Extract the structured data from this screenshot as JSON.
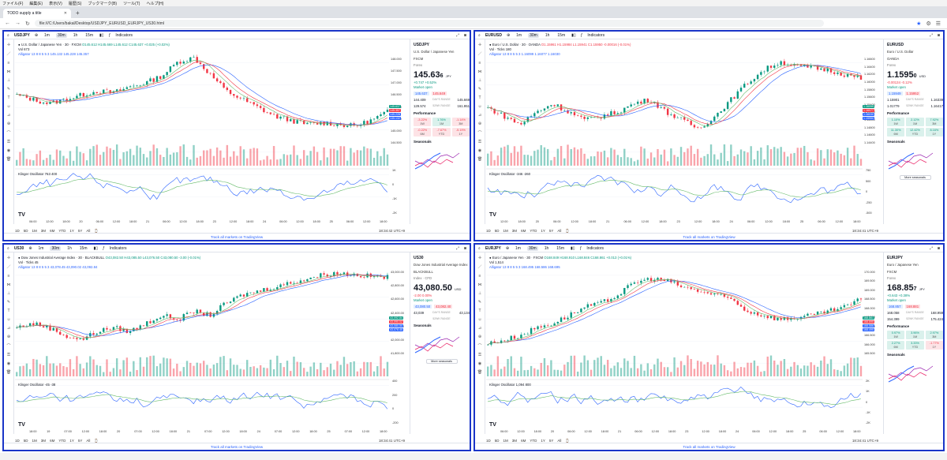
{
  "menu": [
    "ファイル(F)",
    "編集(E)",
    "表示(V)",
    "履歴(S)",
    "ブックマーク(B)",
    "ツール(T)",
    "ヘルプ(H)"
  ],
  "browser": {
    "tab_title": "TODO supply a title",
    "url": "file:///C:/Users/bakal/Desktop/USDJPY_EURUSD_EURJPY_US30.html"
  },
  "timeframes": [
    "1m",
    "30m",
    "1h",
    "15m"
  ],
  "indicators_label": "Indicators",
  "ranges": [
    "1D",
    "5D",
    "1M",
    "3M",
    "6M",
    "YTD",
    "1Y",
    "5Y",
    "All"
  ],
  "tv_link": "Track all markets on TradingView",
  "colors": {
    "up": "#089981",
    "down": "#f23645",
    "blue": "#2962ff",
    "panel_border": "#1a35c8"
  },
  "panels": [
    {
      "symbol": "USDJPY",
      "title": "U.S. Dollar / Japanese Yen · 30 · FXCM",
      "ohlc": "O145.612 H145.669 L145.612 C145.637 +0.025 (+0.02%)",
      "vol": "Vol 673",
      "alligator": "Alligator 13 8 8 5 5 3  145.132  145.228  145.357",
      "osc": "Klinger Oscillator  763  400",
      "rp_desc": "U.S. Dollar / Japanese Yen",
      "rp_src": "FXCM",
      "rp_cat": "Forex",
      "price": "145.63",
      "price_small": "6",
      "cur": "JPY",
      "change": "+0.747  +0.52%",
      "market": "Market open",
      "bid": "145.637",
      "ask": "145.649",
      "day_low": "144.409",
      "day_high": "145.669",
      "wk_low": "129.574",
      "wk_high": "161.951",
      "perf": [
        [
          "-3.22%",
          "1W",
          "neg"
        ],
        [
          "1.76%",
          "1M",
          "pos"
        ],
        [
          "-1.14%",
          "3M",
          "neg"
        ],
        [
          "-0.22%",
          "6M",
          "neg"
        ],
        [
          "-7.67%",
          "YTD",
          "neg"
        ],
        [
          "-5.19%",
          "1Y",
          "neg"
        ]
      ],
      "season_btn": "",
      "clock": "18:34:42 UTC+9",
      "xticks": [
        "06:00",
        "12:00",
        "18:00",
        "20",
        "06:00",
        "12:00",
        "18:00",
        "21",
        "06:00",
        "12:00",
        "18:00",
        "23",
        "12:00",
        "18:00",
        "24",
        "06:00",
        "12:00",
        "18:00",
        "25",
        "06:00",
        "12:00",
        "18:00"
      ],
      "yticks": [
        "148.000",
        "147.500",
        "147.000",
        "146.500",
        "146.000",
        "145.500",
        "145.000",
        "144.500"
      ],
      "oscticks": [
        "1K",
        "0",
        "-1K",
        "-2K"
      ],
      "tags": [
        "145.637",
        "145.357",
        "145.228",
        "145.132"
      ]
    },
    {
      "symbol": "EURUSD",
      "title": "Euro / U.S. Dollar · 30 · OANDA",
      "ohlc": "O1.15961 H1.15984 L1.15941 C1.15950 -0.00016 (-0.01%)",
      "vol": "Vol · Ticks 180",
      "alligator": "Alligator 13 8 8 5 5 3  1.16099  1.16077  1.16030",
      "osc": "Klinger Oscillator  -346  -260",
      "rp_desc": "Euro / U.S. Dollar",
      "rp_src": "OANDA",
      "rp_cat": "Forex",
      "price": "1.1595",
      "price_small": "0",
      "cur": "USD",
      "change": "-0.00134  -0.12%",
      "market": "Market open",
      "bid": "1.15949",
      "ask": "1.15952",
      "day_low": "1.15901",
      "day_high": "1.16339",
      "wk_low": "1.01779",
      "wk_high": "1.16417",
      "perf": [
        [
          "1.10%",
          "1W",
          "pos"
        ],
        [
          "2.12%",
          "1M",
          "pos"
        ],
        [
          "7.92%",
          "3M",
          "pos"
        ],
        [
          "11.30%",
          "6M",
          "pos"
        ],
        [
          "12.42%",
          "YTD",
          "pos"
        ],
        [
          "8.16%",
          "1Y",
          "pos"
        ]
      ],
      "season_btn": "More seasonals",
      "clock": "18:34:41 UTC+9",
      "xticks": [
        "12:00",
        "18:00",
        "20",
        "06:00",
        "12:00",
        "18:00",
        "21",
        "06:00",
        "12:00",
        "18:00",
        "23",
        "12:00",
        "18:00",
        "24",
        "06:00",
        "12:00",
        "18:00",
        "25",
        "06:00",
        "12:00",
        "18:00"
      ],
      "yticks": [
        "1.16600",
        "1.16400",
        "1.16200",
        "1.16000",
        "1.15800",
        "1.15600",
        "1.15400",
        "1.15200",
        "1.15000",
        "1.14800",
        "1.14600",
        "1.14400"
      ],
      "oscticks": [
        "750",
        "500",
        "0",
        "-250",
        "-500"
      ],
      "tags": [
        "1.16099",
        "1.16077",
        "1.16030",
        "1.15950"
      ]
    },
    {
      "symbol": "US30",
      "title": "Dow Jones Industrial Average Index · 30 · BLACKBULL",
      "ohlc": "O43,082.50 H43,085.50 L43,076.50 C43,080.50 -3.00 (-0.01%)",
      "vol": "Vol · Ticks 45",
      "alligator": "Alligator 13 8 8 5 5 3  43,078.45  43,090.02  43,092.84",
      "osc": "Klinger Oscillator  -45  -38",
      "rp_desc": "Dow Jones Industrial Average Index",
      "rp_src": "BLACKBULL",
      "rp_cat": "Index · CFD",
      "price": "43,080.50",
      "price_small": "",
      "cur": "USD",
      "change": "-2.00  0.00%",
      "market": "Market open",
      "bid": "43,080.50",
      "ask": "43,082.40",
      "day_low": "43,039",
      "day_high": "43,134",
      "wk_low": "",
      "wk_high": "",
      "perf": [],
      "season_btn": "More seasonals",
      "clock": "18:34:41 UTC+9",
      "xticks": [
        "18:00",
        "19",
        "07:00",
        "12:00",
        "18:00",
        "20",
        "07:00",
        "12:00",
        "18:00",
        "21",
        "07:00",
        "12:00",
        "18:00",
        "24",
        "07:00",
        "12:00",
        "18:00",
        "25",
        "07:00",
        "12:00",
        "18:00"
      ],
      "yticks": [
        "43,000.00",
        "42,800.00",
        "42,600.00",
        "42,400.00",
        "42,200.00",
        "42,000.00",
        "41,800.00"
      ],
      "oscticks": [
        "400",
        "200",
        "0",
        "-200"
      ],
      "tags": [
        "43,092.84",
        "43,090.02",
        "43,080.50",
        "43,078.45"
      ]
    },
    {
      "symbol": "EURJPY",
      "title": "Euro / Japanese Yen · 30 · FXCM",
      "ohlc": "O168.849 H168.910 L168.846 C168.861 +0.013 (+0.01%)",
      "vol": "Vol 1,514",
      "alligator": "Alligator 13 8 8 5 5 3  168.495  168.586  168.695",
      "osc": "Klinger Oscillator  1,094  800",
      "rp_desc": "Euro / Japanese Yen",
      "rp_src": "FXCM",
      "rp_cat": "Forex",
      "price": "168.85",
      "price_small": "7",
      "cur": "JPY",
      "change": "+0.643  +0.38%",
      "market": "Market open",
      "bid": "168.857",
      "ask": "168.881",
      "day_low": "168.058",
      "day_high": "168.959",
      "wk_low": "154.399",
      "wk_high": "175.424",
      "perf": [
        [
          "0.97%",
          "1W",
          "pos"
        ],
        [
          "3.96%",
          "1M",
          "pos"
        ],
        [
          "2.97%",
          "3M",
          "pos"
        ],
        [
          "2.27%",
          "6M",
          "pos"
        ],
        [
          "3.33%",
          "YTD",
          "pos"
        ],
        [
          "-1.77%",
          "1Y",
          "neg"
        ]
      ],
      "season_btn": "",
      "clock": "18:34:41 UTC+9",
      "xticks": [
        "06:00",
        "12:00",
        "18:00",
        "20",
        "06:00",
        "12:00",
        "18:00",
        "21",
        "06:00",
        "12:00",
        "18:00",
        "23",
        "12:00",
        "18:00",
        "24",
        "06:00",
        "12:00",
        "18:00",
        "25",
        "06:00",
        "12:00",
        "18:00"
      ],
      "yticks": [
        "170.000",
        "169.500",
        "169.000",
        "168.500",
        "168.000",
        "167.500",
        "167.000",
        "166.500",
        "166.000",
        "165.500"
      ],
      "oscticks": [
        "2K",
        "1K",
        "0",
        "-1K",
        "-2K"
      ],
      "tags": [
        "168.861",
        "168.695",
        "168.586",
        "168.495"
      ]
    }
  ],
  "perf_label": "Performance",
  "seasonals_label": "Seasonals",
  "days_range_label": "DAY'S RANGE",
  "wk_range_label": "52WK RANGE"
}
